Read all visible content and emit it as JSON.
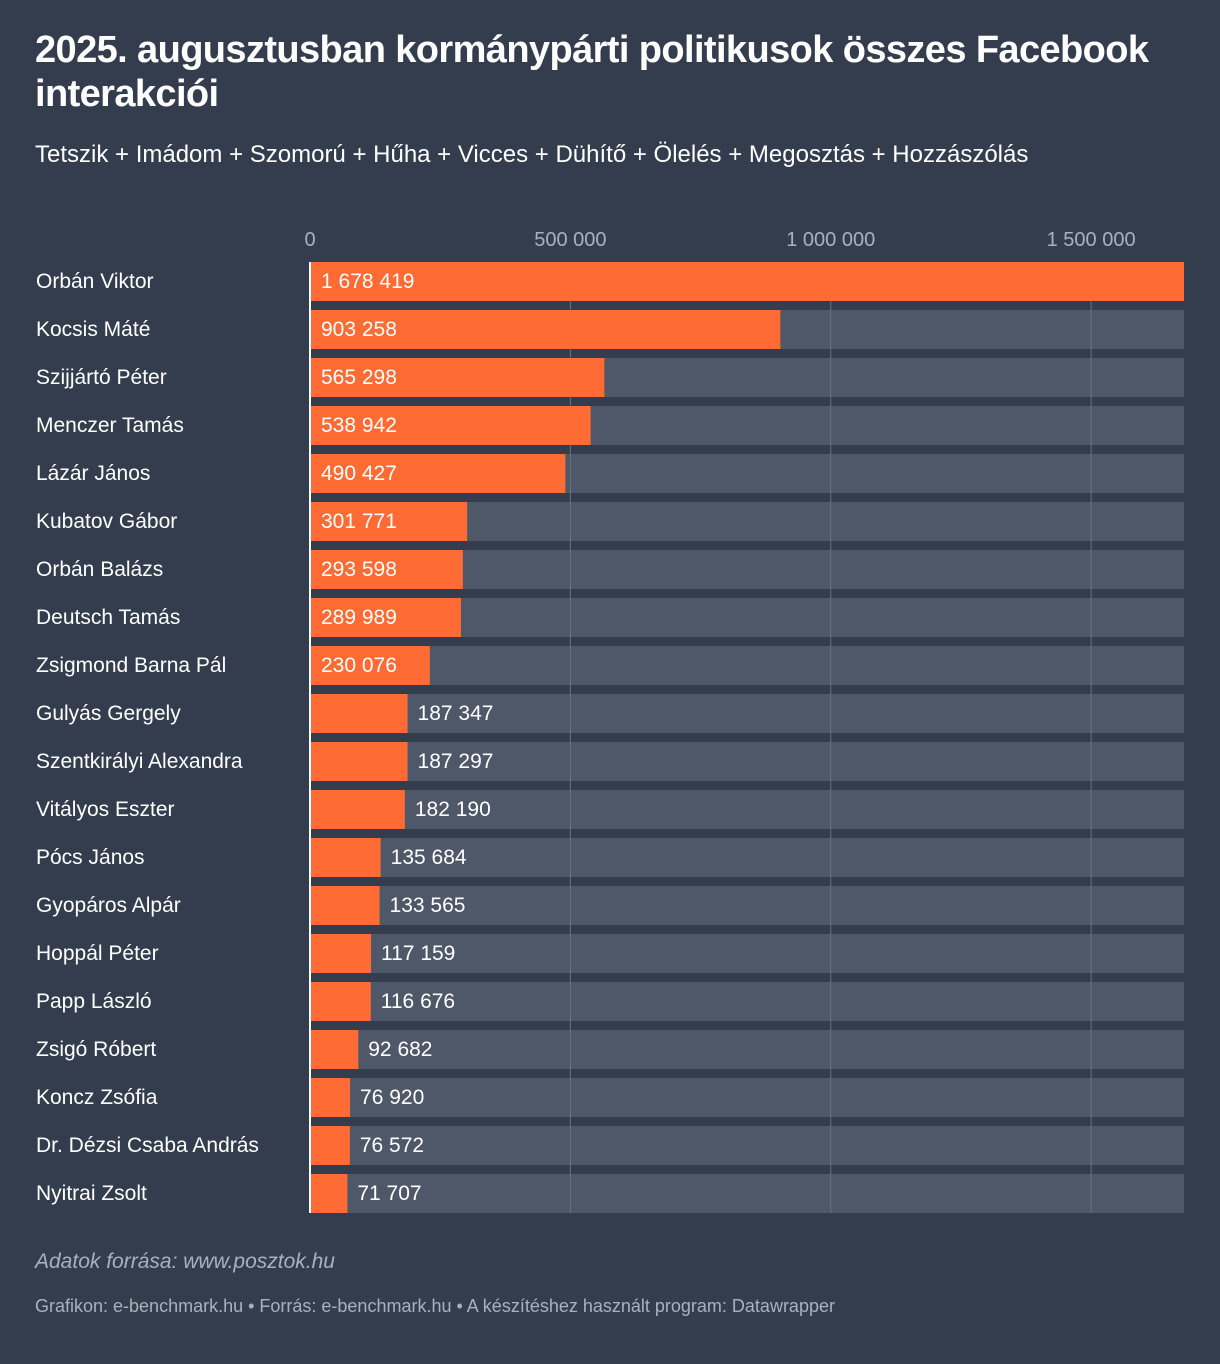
{
  "chart_data": {
    "type": "bar",
    "orientation": "horizontal",
    "title": "2025. augusztusban kormánypárti politikusok összes Facebook interakciói",
    "subtitle": "Tetszik + Imádom + Szomorú + Hűha + Vicces + Dühítő + Ölelés + Megosztás + Hozzászólás",
    "xlim": [
      0,
      1678419
    ],
    "ticks": [
      0,
      500000,
      1000000,
      1500000
    ],
    "tick_labels": [
      "0",
      "500 000",
      "1 000 000",
      "1 500 000"
    ],
    "categories": [
      "Orbán Viktor",
      "Kocsis Máté",
      "Szijjártó Péter",
      "Menczer Tamás",
      "Lázár János",
      "Kubatov Gábor",
      "Orbán Balázs",
      "Deutsch Tamás",
      "Zsigmond Barna Pál",
      "Gulyás Gergely",
      "Szentkirályi Alexandra",
      "Vitályos Eszter",
      "Pócs János",
      "Gyopáros Alpár",
      "Hoppál Péter",
      "Papp László",
      "Zsigó Róbert",
      "Koncz Zsófia",
      "Dr. Dézsi Csaba András",
      "Nyitrai Zsolt"
    ],
    "values": [
      1678419,
      903258,
      565298,
      538942,
      490427,
      301771,
      293598,
      289989,
      230076,
      187347,
      187297,
      182190,
      135684,
      133565,
      117159,
      116676,
      92682,
      76920,
      76572,
      71707
    ],
    "value_labels": [
      "1 678 419",
      "903 258",
      "565 298",
      "538 942",
      "490 427",
      "301 771",
      "293 598",
      "289 989",
      "230 076",
      "187 347",
      "187 297",
      "182 190",
      "135 684",
      "133 565",
      "117 159",
      "116 676",
      "92 682",
      "76 920",
      "76 572",
      "71 707"
    ],
    "colors": {
      "bar": "#ff6b35",
      "track": "#4f5868",
      "grid": "#6a7381",
      "axis": "#ffffff"
    }
  },
  "notes": {
    "source": "Adatok forrása: www.posztok.hu",
    "footer": "Grafikon: e-benchmark.hu • Forrás: e-benchmark.hu • A készítéshez használt program: Datawrapper"
  }
}
